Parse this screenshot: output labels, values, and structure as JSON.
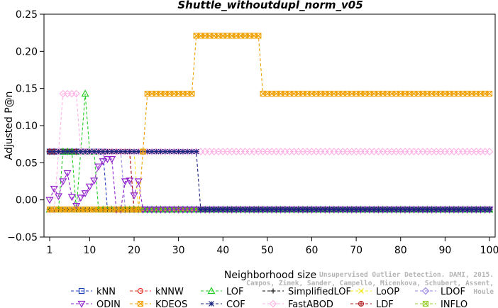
{
  "chart_data": {
    "type": "line",
    "title": "Shuttle_withoutdupl_norm_v05",
    "xlabel": "Neighborhood size",
    "ylabel": "Adjusted P@n",
    "xlim": [
      1,
      100
    ],
    "ylim": [
      -0.05,
      0.25
    ],
    "xticks": [
      "1",
      "10",
      "20",
      "30",
      "40",
      "50",
      "60",
      "70",
      "80",
      "90",
      "100"
    ],
    "yticks": [
      "−0.05",
      "0.00",
      "0.05",
      "0.10",
      "0.15",
      "0.20",
      "0.25"
    ],
    "grid": false,
    "legend_position": "bottom",
    "series": [
      {
        "name": "kNN",
        "color": "#1f3fbf",
        "marker": "square",
        "segments": [
          [
            1,
            0.065
          ],
          [
            13,
            0.065
          ],
          [
            14,
            -0.013
          ],
          [
            100,
            -0.013
          ]
        ]
      },
      {
        "name": "kNNW",
        "color": "#e8322a",
        "marker": "circle",
        "segments": [
          [
            1,
            0.065
          ],
          [
            19,
            0.065
          ],
          [
            20,
            -0.013
          ],
          [
            100,
            -0.013
          ]
        ]
      },
      {
        "name": "LOF",
        "color": "#22cc22",
        "marker": "triangle-up",
        "points": [
          [
            1,
            -0.013
          ],
          [
            2,
            -0.013
          ],
          [
            3,
            -0.013
          ],
          [
            4,
            0.065
          ],
          [
            5,
            0.065
          ],
          [
            6,
            0.065
          ],
          [
            7,
            -0.013
          ],
          [
            8,
            0.065
          ],
          [
            9,
            0.143
          ],
          [
            10,
            0.065
          ],
          [
            11,
            0.065
          ],
          [
            12,
            -0.013
          ]
        ],
        "segments": [
          [
            12,
            -0.013
          ],
          [
            100,
            -0.013
          ]
        ]
      },
      {
        "name": "SimplifiedLOF",
        "color": "#111111",
        "marker": "plus",
        "segments": [
          [
            1,
            -0.013
          ],
          [
            100,
            -0.013
          ]
        ]
      },
      {
        "name": "LoOP",
        "color": "#f5e61a",
        "marker": "x",
        "segments": [
          [
            1,
            0.065
          ],
          [
            20,
            0.065
          ],
          [
            21,
            -0.013
          ],
          [
            100,
            -0.013
          ]
        ]
      },
      {
        "name": "LDOF",
        "color": "#9a86e6",
        "marker": "diamond",
        "segments": [
          [
            1,
            0.065
          ],
          [
            17,
            0.065
          ],
          [
            18,
            -0.013
          ],
          [
            100,
            -0.013
          ]
        ]
      },
      {
        "name": "ODIN",
        "color": "#9122cc",
        "marker": "triangle-down",
        "points": [
          [
            1,
            0.0
          ],
          [
            2,
            0.015
          ],
          [
            3,
            0.005
          ],
          [
            4,
            0.025
          ],
          [
            5,
            0.036
          ],
          [
            6,
            0.004
          ],
          [
            7,
            -0.008
          ],
          [
            8,
            0.003
          ],
          [
            9,
            0.009
          ],
          [
            10,
            0.018
          ],
          [
            11,
            0.026
          ],
          [
            12,
            0.045
          ],
          [
            13,
            0.052
          ],
          [
            14,
            0.055
          ],
          [
            15,
            0.055
          ],
          [
            16,
            -0.013
          ],
          [
            17,
            -0.013
          ],
          [
            18,
            0.025
          ],
          [
            19,
            0.026
          ],
          [
            20,
            0.006
          ],
          [
            21,
            0.025
          ],
          [
            22,
            -0.013
          ]
        ],
        "segments": [
          [
            22,
            -0.013
          ],
          [
            100,
            -0.013
          ]
        ]
      },
      {
        "name": "KDEOS",
        "color": "#f0a000",
        "marker": "square-x",
        "segments": [
          [
            1,
            -0.013
          ],
          [
            21,
            -0.013
          ],
          [
            22,
            0.065
          ],
          [
            23,
            0.143
          ],
          [
            33,
            0.143
          ],
          [
            34,
            0.221
          ],
          [
            48,
            0.221
          ],
          [
            49,
            0.143
          ],
          [
            100,
            0.143
          ]
        ]
      },
      {
        "name": "COF",
        "color": "#1a237e",
        "marker": "asterisk",
        "segments": [
          [
            1,
            0.065
          ],
          [
            34,
            0.065
          ],
          [
            35,
            -0.013
          ],
          [
            100,
            -0.013
          ]
        ]
      },
      {
        "name": "FastABOD",
        "color": "#ffb3e6",
        "marker": "diamond",
        "points": [
          [
            1,
            -0.013
          ],
          [
            2,
            -0.013
          ],
          [
            3,
            0.065
          ],
          [
            4,
            0.143
          ],
          [
            5,
            0.143
          ],
          [
            6,
            0.143
          ],
          [
            7,
            0.143
          ],
          [
            8,
            0.065
          ]
        ],
        "segments": [
          [
            8,
            0.065
          ],
          [
            100,
            0.065
          ]
        ]
      },
      {
        "name": "LDF",
        "color": "#b22222",
        "marker": "circle-plus",
        "segments": [
          [
            1,
            0.065
          ],
          [
            19,
            0.065
          ],
          [
            20,
            -0.013
          ],
          [
            100,
            -0.013
          ]
        ]
      },
      {
        "name": "INFLO",
        "color": "#9acd32",
        "marker": "square-x",
        "segments": [
          [
            1,
            -0.013
          ],
          [
            100,
            -0.013
          ]
        ]
      }
    ]
  },
  "credit_line1": "Unsupervised Outlier Detection. DAMI, 2015.",
  "credit_line2": "Campos, Zimek, Sander, Campello, Micenkova, Schubert, Assent, Houle"
}
